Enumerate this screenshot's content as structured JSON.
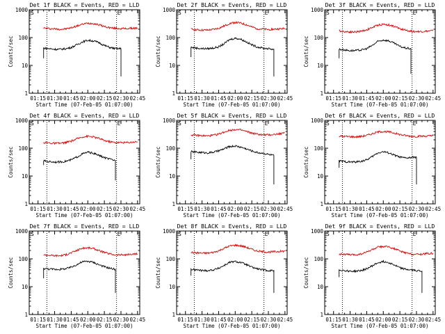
{
  "page": {
    "colors": {
      "events": "#000000",
      "lld": "#e00000",
      "frame": "#000000",
      "background": "#ffffff"
    }
  },
  "chart_data": [
    {
      "type": "line",
      "title": "Det 1f BLACK = Events, RED = LLD",
      "marker_left": "S",
      "marker_right": "E",
      "xlabel": "Start Time (07-Feb-05 01:07:00)",
      "ylabel": "Counts/sec",
      "yscale": "log",
      "ylim": [
        1,
        1000
      ],
      "yticks": [
        1,
        10,
        100,
        1000
      ],
      "ytick_labels": [
        "1",
        "10",
        "100",
        "1000"
      ],
      "xlim": [
        "01:07",
        "02:47"
      ],
      "xtick_labels": [
        "01:15",
        "01:30",
        "01:45",
        "02:00",
        "02:15",
        "02:30",
        "02:45"
      ],
      "vlines": [
        "01:23",
        "02:26"
      ],
      "x": [
        "01:20",
        "01:25",
        "01:30",
        "01:35",
        "01:40",
        "01:45",
        "01:50",
        "01:55",
        "02:00",
        "02:05",
        "02:10",
        "02:15",
        "02:20",
        "02:25",
        "02:30",
        "02:35",
        "02:40",
        "02:45"
      ],
      "series": [
        {
          "name": "LLD",
          "color": "#e00000",
          "values": [
            220,
            210,
            205,
            200,
            205,
            225,
            260,
            300,
            330,
            320,
            290,
            250,
            225,
            215,
            210,
            210,
            215,
            220
          ]
        },
        {
          "name": "Events",
          "color": "#000000",
          "values": [
            42,
            40,
            38,
            38,
            40,
            44,
            55,
            70,
            80,
            76,
            66,
            52,
            44,
            40,
            40,
            null,
            null,
            null
          ],
          "start_drop": 18,
          "end_drop": 4
        }
      ]
    },
    {
      "type": "line",
      "title": "Det 2f BLACK = Events, RED = LLD",
      "marker_left": "S",
      "marker_right": "E",
      "xlabel": "Start Time (07-Feb-05 01:07:00)",
      "ylabel": "Counts/sec",
      "yscale": "log",
      "ylim": [
        1,
        1000
      ],
      "yticks": [
        1,
        10,
        100,
        1000
      ],
      "ytick_labels": [
        "1",
        "10",
        "100",
        "1000"
      ],
      "xlim": [
        "01:07",
        "02:47"
      ],
      "xtick_labels": [
        "01:15",
        "01:30",
        "01:45",
        "02:00",
        "02:15",
        "02:30",
        "02:45"
      ],
      "vlines": [
        "01:23",
        "02:26"
      ],
      "x": [
        "01:20",
        "01:25",
        "01:30",
        "01:35",
        "01:40",
        "01:45",
        "01:50",
        "01:55",
        "02:00",
        "02:05",
        "02:10",
        "02:15",
        "02:20",
        "02:25",
        "02:30",
        "02:35",
        "02:40",
        "02:45"
      ],
      "series": [
        {
          "name": "LLD",
          "color": "#e00000",
          "values": [
            200,
            190,
            185,
            185,
            195,
            215,
            260,
            320,
            350,
            330,
            290,
            240,
            210,
            200,
            195,
            200,
            205,
            210
          ]
        },
        {
          "name": "Events",
          "color": "#000000",
          "values": [
            45,
            42,
            40,
            40,
            42,
            46,
            60,
            85,
            95,
            88,
            70,
            55,
            46,
            42,
            40,
            38,
            null,
            null
          ],
          "start_drop": 20,
          "end_drop": 4
        }
      ]
    },
    {
      "type": "line",
      "title": "Det 3f BLACK = Events, RED = LLD",
      "marker_left": "S",
      "marker_right": "E",
      "xlabel": "Start Time (07-Feb-05 01:07:00)",
      "ylabel": "Counts/sec",
      "yscale": "log",
      "ylim": [
        1,
        1000
      ],
      "yticks": [
        1,
        10,
        100,
        1000
      ],
      "ytick_labels": [
        "1",
        "10",
        "100",
        "1000"
      ],
      "xlim": [
        "01:07",
        "02:47"
      ],
      "xtick_labels": [
        "01:15",
        "01:30",
        "01:45",
        "02:00",
        "02:15",
        "02:30",
        "02:45"
      ],
      "vlines": [
        "01:23",
        "02:26"
      ],
      "x": [
        "01:20",
        "01:25",
        "01:30",
        "01:35",
        "01:40",
        "01:45",
        "01:50",
        "01:55",
        "02:00",
        "02:05",
        "02:10",
        "02:15",
        "02:20",
        "02:25",
        "02:30",
        "02:35",
        "02:40",
        "02:45"
      ],
      "series": [
        {
          "name": "LLD",
          "color": "#e00000",
          "values": [
            175,
            165,
            160,
            160,
            170,
            190,
            230,
            280,
            300,
            285,
            250,
            210,
            185,
            170,
            165,
            165,
            170,
            175
          ]
        },
        {
          "name": "Events",
          "color": "#000000",
          "values": [
            38,
            36,
            34,
            34,
            36,
            40,
            52,
            72,
            82,
            76,
            62,
            48,
            42,
            40,
            null,
            null,
            null,
            null
          ],
          "start_drop": 18,
          "end_drop": 5
        }
      ]
    },
    {
      "type": "line",
      "title": "Det 4f BLACK = Events, RED = LLD",
      "marker_left": "S",
      "marker_right": "E",
      "xlabel": "Start Time (07-Feb-05 01:07:00)",
      "ylabel": "Counts/sec",
      "yscale": "log",
      "ylim": [
        1,
        1000
      ],
      "yticks": [
        1,
        10,
        100,
        1000
      ],
      "ytick_labels": [
        "1",
        "10",
        "100",
        "1000"
      ],
      "xlim": [
        "01:07",
        "02:47"
      ],
      "xtick_labels": [
        "01:15",
        "01:30",
        "01:45",
        "02:00",
        "02:15",
        "02:30",
        "02:45"
      ],
      "vlines": [
        "01:23",
        "02:26"
      ],
      "x": [
        "01:20",
        "01:25",
        "01:30",
        "01:35",
        "01:40",
        "01:45",
        "01:50",
        "01:55",
        "02:00",
        "02:05",
        "02:10",
        "02:15",
        "02:20",
        "02:25",
        "02:30",
        "02:35",
        "02:40",
        "02:45"
      ],
      "series": [
        {
          "name": "LLD",
          "color": "#e00000",
          "values": [
            160,
            155,
            150,
            150,
            160,
            180,
            215,
            255,
            270,
            255,
            225,
            190,
            170,
            160,
            160,
            160,
            165,
            170
          ]
        },
        {
          "name": "Events",
          "color": "#000000",
          "values": [
            35,
            33,
            32,
            32,
            34,
            38,
            48,
            62,
            72,
            66,
            55,
            46,
            40,
            36,
            null,
            null,
            null,
            null
          ],
          "start_drop": 25,
          "end_drop": 7
        }
      ]
    },
    {
      "type": "line",
      "title": "Det 5f BLACK = Events, RED = LLD",
      "marker_left": "S",
      "marker_right": "E",
      "xlabel": "Start Time (07-Feb-05 01:07:00)",
      "ylabel": "Counts/sec",
      "yscale": "log",
      "ylim": [
        1,
        1000
      ],
      "yticks": [
        1,
        10,
        100,
        1000
      ],
      "ytick_labels": [
        "1",
        "10",
        "100",
        "1000"
      ],
      "xlim": [
        "01:07",
        "02:47"
      ],
      "xtick_labels": [
        "01:15",
        "01:30",
        "01:45",
        "02:00",
        "02:15",
        "02:30",
        "02:45"
      ],
      "vlines": [
        "01:23",
        "02:26"
      ],
      "x": [
        "01:20",
        "01:25",
        "01:30",
        "01:35",
        "01:40",
        "01:45",
        "01:50",
        "01:55",
        "02:00",
        "02:05",
        "02:10",
        "02:15",
        "02:20",
        "02:25",
        "02:30",
        "02:35",
        "02:40",
        "02:45"
      ],
      "series": [
        {
          "name": "LLD",
          "color": "#e00000",
          "values": [
            300,
            290,
            280,
            275,
            290,
            320,
            380,
            440,
            470,
            450,
            400,
            350,
            320,
            300,
            300,
            310,
            330,
            350
          ]
        },
        {
          "name": "Events",
          "color": "#000000",
          "values": [
            75,
            72,
            70,
            68,
            72,
            80,
            95,
            115,
            120,
            110,
            95,
            80,
            70,
            66,
            60,
            55,
            null,
            null
          ],
          "start_drop": 40,
          "end_drop": 5
        }
      ]
    },
    {
      "type": "line",
      "title": "Det 6f BLACK = Events, RED = LLD",
      "marker_left": "S",
      "marker_right": "E",
      "xlabel": "Start Time (07-Feb-05 01:07:00)",
      "ylabel": "Counts/sec",
      "yscale": "log",
      "ylim": [
        1,
        1000
      ],
      "yticks": [
        1,
        10,
        100,
        1000
      ],
      "ytick_labels": [
        "1",
        "10",
        "100",
        "1000"
      ],
      "xlim": [
        "01:07",
        "02:47"
      ],
      "xtick_labels": [
        "01:15",
        "01:30",
        "01:45",
        "02:00",
        "02:15",
        "02:30",
        "02:45"
      ],
      "vlines": [
        "01:23",
        "02:26"
      ],
      "x": [
        "01:20",
        "01:25",
        "01:30",
        "01:35",
        "01:40",
        "01:45",
        "01:50",
        "01:55",
        "02:00",
        "02:05",
        "02:10",
        "02:15",
        "02:20",
        "02:25",
        "02:30",
        "02:35",
        "02:40",
        "02:45"
      ],
      "series": [
        {
          "name": "LLD",
          "color": "#e00000",
          "values": [
            270,
            265,
            260,
            255,
            265,
            290,
            330,
            380,
            400,
            385,
            350,
            310,
            285,
            270,
            265,
            270,
            275,
            280
          ]
        },
        {
          "name": "Events",
          "color": "#000000",
          "values": [
            35,
            33,
            32,
            32,
            34,
            38,
            50,
            68,
            75,
            68,
            56,
            48,
            44,
            46,
            48,
            null,
            null,
            null
          ],
          "start_drop": 20,
          "end_drop": 5
        }
      ]
    },
    {
      "type": "line",
      "title": "Det 7f BLACK = Events, RED = LLD",
      "marker_left": "S",
      "marker_right": "E",
      "xlabel": "Start Time (07-Feb-05 01:07:00)",
      "ylabel": "Counts/sec",
      "yscale": "log",
      "ylim": [
        1,
        1000
      ],
      "yticks": [
        1,
        10,
        100,
        1000
      ],
      "ytick_labels": [
        "1",
        "10",
        "100",
        "1000"
      ],
      "xlim": [
        "01:07",
        "02:47"
      ],
      "xtick_labels": [
        "01:15",
        "01:30",
        "01:45",
        "02:00",
        "02:15",
        "02:30",
        "02:45"
      ],
      "vlines": [
        "01:23",
        "02:26"
      ],
      "x": [
        "01:20",
        "01:25",
        "01:30",
        "01:35",
        "01:40",
        "01:45",
        "01:50",
        "01:55",
        "02:00",
        "02:05",
        "02:10",
        "02:15",
        "02:20",
        "02:25",
        "02:30",
        "02:35",
        "02:40",
        "02:45"
      ],
      "series": [
        {
          "name": "LLD",
          "color": "#e00000",
          "values": [
            140,
            135,
            130,
            130,
            140,
            165,
            200,
            240,
            250,
            235,
            200,
            170,
            150,
            140,
            140,
            140,
            145,
            150
          ]
        },
        {
          "name": "Events",
          "color": "#000000",
          "values": [
            45,
            43,
            42,
            42,
            44,
            50,
            62,
            78,
            82,
            75,
            62,
            52,
            46,
            42,
            null,
            null,
            null,
            null
          ],
          "start_drop": 20,
          "end_drop": 6
        }
      ]
    },
    {
      "type": "line",
      "title": "Det 8f BLACK = Events, RED = LLD",
      "marker_left": "S",
      "marker_right": "E",
      "xlabel": "Start Time (07-Feb-05 01:07:00)",
      "ylabel": "Counts/sec",
      "yscale": "log",
      "ylim": [
        1,
        1000
      ],
      "yticks": [
        1,
        10,
        100,
        1000
      ],
      "ytick_labels": [
        "1",
        "10",
        "100",
        "1000"
      ],
      "xlim": [
        "01:07",
        "02:47"
      ],
      "xtick_labels": [
        "01:15",
        "01:30",
        "01:45",
        "02:00",
        "02:15",
        "02:30",
        "02:45"
      ],
      "vlines": [
        "01:23",
        "02:26"
      ],
      "x": [
        "01:20",
        "01:25",
        "01:30",
        "01:35",
        "01:40",
        "01:45",
        "01:50",
        "01:55",
        "02:00",
        "02:05",
        "02:10",
        "02:15",
        "02:20",
        "02:25",
        "02:30",
        "02:35",
        "02:40",
        "02:45"
      ],
      "series": [
        {
          "name": "LLD",
          "color": "#e00000",
          "values": [
            170,
            165,
            160,
            160,
            170,
            195,
            240,
            290,
            310,
            295,
            260,
            220,
            190,
            180,
            175,
            180,
            185,
            190
          ]
        },
        {
          "name": "Events",
          "color": "#000000",
          "values": [
            42,
            40,
            38,
            38,
            40,
            46,
            58,
            75,
            80,
            74,
            62,
            50,
            44,
            40,
            38,
            38,
            null,
            null
          ],
          "start_drop": 25,
          "end_drop": 6
        }
      ]
    },
    {
      "type": "line",
      "title": "Det 9f BLACK = Events, RED = LLD",
      "marker_left": "S",
      "marker_right": "E",
      "xlabel": "Start Time (07-Feb-05 01:07:00)",
      "ylabel": "Counts/sec",
      "yscale": "log",
      "ylim": [
        1,
        1000
      ],
      "yticks": [
        1,
        10,
        100,
        1000
      ],
      "ytick_labels": [
        "1",
        "10",
        "100",
        "1000"
      ],
      "xlim": [
        "01:07",
        "02:47"
      ],
      "xtick_labels": [
        "01:15",
        "01:30",
        "01:45",
        "02:00",
        "02:15",
        "02:30",
        "02:45"
      ],
      "vlines": [
        "01:23",
        "02:26"
      ],
      "x": [
        "01:20",
        "01:25",
        "01:30",
        "01:35",
        "01:40",
        "01:45",
        "01:50",
        "01:55",
        "02:00",
        "02:05",
        "02:10",
        "02:15",
        "02:20",
        "02:25",
        "02:30",
        "02:35",
        "02:40",
        "02:45"
      ],
      "series": [
        {
          "name": "LLD",
          "color": "#e00000",
          "values": [
            150,
            145,
            140,
            140,
            150,
            175,
            215,
            260,
            280,
            265,
            230,
            190,
            165,
            150,
            145,
            150,
            155,
            160
          ]
        },
        {
          "name": "Events",
          "color": "#000000",
          "values": [
            40,
            38,
            36,
            36,
            38,
            44,
            56,
            72,
            80,
            74,
            60,
            48,
            42,
            40,
            38,
            36,
            null,
            null
          ],
          "start_drop": 22,
          "end_drop": 6
        }
      ]
    }
  ]
}
